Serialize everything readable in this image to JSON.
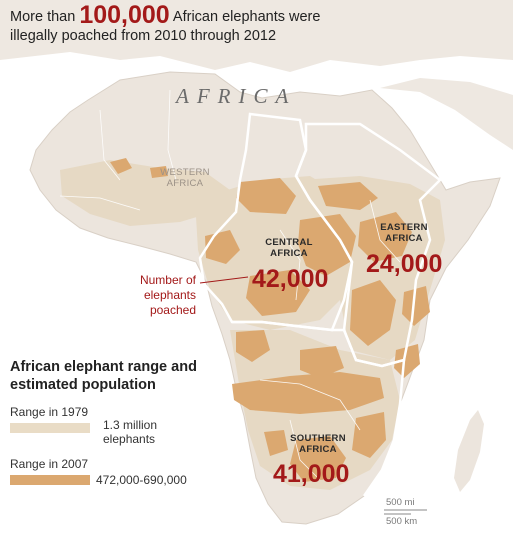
{
  "headline": {
    "prefix": "More than ",
    "highlight": "100,000",
    "suffix": " African elephants were illegally poached from 2010 through 2012"
  },
  "continent_label": "AFRICA",
  "regions": {
    "western": {
      "line1": "WESTERN",
      "line2": "AFRICA"
    },
    "central": {
      "line1": "CENTRAL",
      "line2": "AFRICA",
      "poached": "42,000"
    },
    "eastern": {
      "line1": "EASTERN",
      "line2": "AFRICA",
      "poached": "24,000"
    },
    "southern": {
      "line1": "SOUTHERN",
      "line2": "AFRICA",
      "poached": "41,000"
    }
  },
  "callout": "Number of elephants poached",
  "legend": {
    "title": "African elephant range and estimated population",
    "range_1979": {
      "label": "Range in 1979",
      "value": "1.3 million elephants",
      "color": "#e9dcc6"
    },
    "range_2007": {
      "label": "Range in 2007",
      "value": "472,000-690,000",
      "color": "#dba870"
    }
  },
  "scale": {
    "mi": "500 mi",
    "km": "500 km"
  },
  "colors": {
    "land": "#ece5dd",
    "range_1979": "#e6d9c4",
    "range_2007": "#dba870",
    "highlight_red": "#a31919",
    "border": "#ffffff"
  }
}
